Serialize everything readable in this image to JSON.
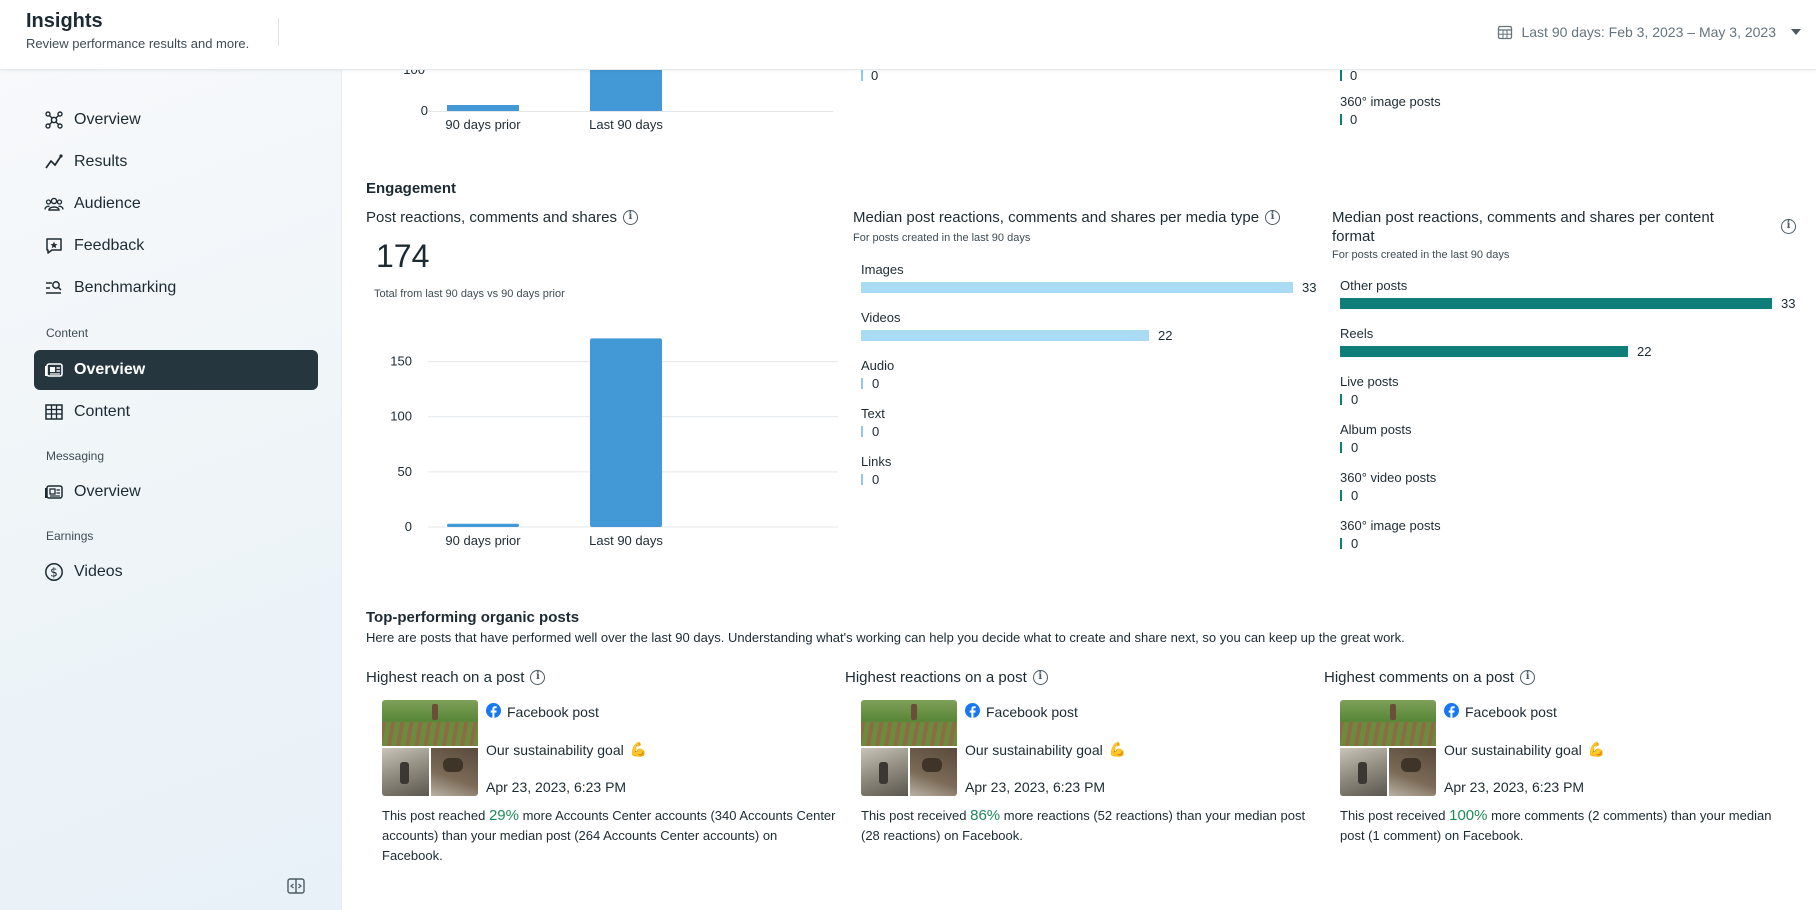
{
  "header": {
    "title": "Insights",
    "subtitle": "Review performance results and more.",
    "date_range": "Last 90 days: Feb 3, 2023 – May 3, 2023"
  },
  "sidebar": {
    "items": [
      {
        "label": "Overview",
        "icon": "overview-network-icon"
      },
      {
        "label": "Results",
        "icon": "trend-line-icon"
      },
      {
        "label": "Audience",
        "icon": "people-icon"
      },
      {
        "label": "Feedback",
        "icon": "feedback-star-icon"
      },
      {
        "label": "Benchmarking",
        "icon": "benchmark-search-icon"
      }
    ],
    "content_label": "Content",
    "content_items": [
      {
        "label": "Overview",
        "icon": "content-overview-icon",
        "active": true
      },
      {
        "label": "Content",
        "icon": "table-grid-icon"
      }
    ],
    "messaging_label": "Messaging",
    "messaging_items": [
      {
        "label": "Overview",
        "icon": "messaging-overview-icon"
      }
    ],
    "earnings_label": "Earnings",
    "earnings_items": [
      {
        "label": "Videos",
        "icon": "dollar-circle-icon"
      }
    ]
  },
  "top_partial": {
    "chart": {
      "type": "bar",
      "categories": [
        "90 days prior",
        "Last 90 days"
      ],
      "zero_tick": "0",
      "partial_tick": "100"
    },
    "media_zero": "0",
    "format_zero_1": "0",
    "format_label": "360° image posts",
    "format_zero_2": "0"
  },
  "engagement": {
    "section_title": "Engagement",
    "total_card": {
      "title": "Post reactions, comments and shares",
      "value": "174",
      "note": "Total from last 90 days vs 90 days prior"
    },
    "media_card": {
      "title": "Median post reactions, comments and shares per media type",
      "note": "For posts created in the last 90 days"
    },
    "format_card": {
      "title": "Median post reactions, comments and shares per content format",
      "note": "For posts created in the last 90 days"
    }
  },
  "chart_data": [
    {
      "type": "bar",
      "title": "Post reactions, comments and shares",
      "categories": [
        "90 days prior",
        "Last 90 days"
      ],
      "values": [
        3,
        171
      ],
      "yticks": [
        "0",
        "50",
        "100",
        "150"
      ],
      "ylim": [
        0,
        175
      ],
      "color": "#4399d6"
    },
    {
      "type": "bar",
      "orientation": "horizontal",
      "title": "Median post reactions, comments and shares per media type",
      "categories": [
        "Images",
        "Videos",
        "Audio",
        "Text",
        "Links"
      ],
      "values": [
        33,
        22,
        0,
        0,
        0
      ],
      "labels": [
        "33",
        "22",
        "0",
        "0",
        "0"
      ],
      "color": "#a9dbf4"
    },
    {
      "type": "bar",
      "orientation": "horizontal",
      "title": "Median post reactions, comments and shares per content format",
      "categories": [
        "Other posts",
        "Reels",
        "Live posts",
        "Album posts",
        "360° video posts",
        "360° image posts"
      ],
      "values": [
        33,
        22,
        0,
        0,
        0,
        0
      ],
      "labels": [
        "33",
        "22",
        "0",
        "0",
        "0",
        "0"
      ],
      "color": "#0f7e7a"
    }
  ],
  "top_posts": {
    "title": "Top-performing organic posts",
    "description": "Here are posts that have performed well over the last 90 days. Understanding what's working can help you decide what to create and share next, so you can keep up the great work.",
    "cards": [
      {
        "title": "Highest reach on a post",
        "source": "Facebook post",
        "text": "Our sustainability goal",
        "emoji": "💪",
        "date": "Apr 23, 2023, 6:23 PM",
        "desc_before": "This post reached ",
        "pct": "29%",
        "desc_after": " more Accounts Center accounts (340 Accounts Center accounts) than your median post (264 Accounts Center accounts) on Facebook."
      },
      {
        "title": "Highest reactions on a post",
        "source": "Facebook post",
        "text": "Our sustainability goal",
        "emoji": "💪",
        "date": "Apr 23, 2023, 6:23 PM",
        "desc_before": "This post received ",
        "pct": "86%",
        "desc_after": " more reactions (52 reactions) than your median post (28 reactions) on Facebook."
      },
      {
        "title": "Highest comments on a post",
        "source": "Facebook post",
        "text": "Our sustainability goal",
        "emoji": "💪",
        "date": "Apr 23, 2023, 6:23 PM",
        "desc_before": "This post received ",
        "pct": "100%",
        "desc_after": " more comments (2 comments) than your median post (1 comment) on Facebook."
      }
    ]
  },
  "colors": {
    "accent_blue": "#4399d6",
    "light_blue": "#a9dbf4",
    "teal": "#0f7e7a",
    "active_nav": "#25363f",
    "pct_green": "#1f8a5b"
  }
}
